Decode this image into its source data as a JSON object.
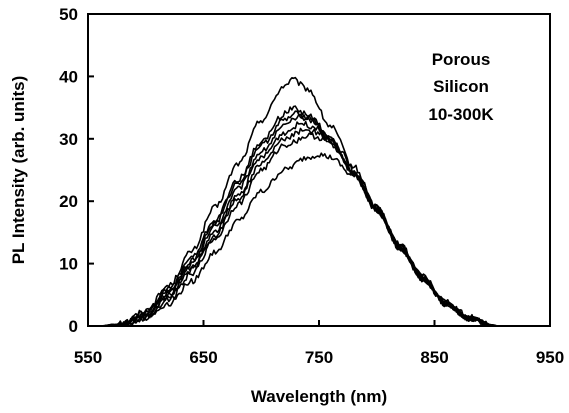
{
  "chart_data": {
    "type": "line",
    "title": "",
    "xlabel": "Wavelength (nm)",
    "ylabel": "PL Intensity (arb. units)",
    "xlim": [
      550,
      950
    ],
    "ylim": [
      0,
      50
    ],
    "x_ticks": [
      550,
      650,
      750,
      850,
      950
    ],
    "y_ticks": [
      0,
      10,
      20,
      30,
      40,
      50
    ],
    "grid": false,
    "legend": "none",
    "annotation": [
      "Porous",
      "Silicon",
      "10-300K"
    ],
    "colors": {
      "line": "#000000",
      "axis": "#000000",
      "background": "#ffffff"
    },
    "series": [
      {
        "peak_x": 727,
        "x": [
          560,
          580,
          600,
          620,
          640,
          660,
          680,
          700,
          720,
          727,
          740,
          760,
          780,
          800,
          820,
          840,
          860,
          880,
          900,
          905
        ],
        "values": [
          0,
          0.5,
          2.5,
          6.5,
          12,
          19,
          26,
          33,
          38.5,
          39.5,
          38,
          32,
          25.5,
          19,
          13,
          8,
          4,
          1.5,
          0.2,
          0
        ]
      },
      {
        "peak_x": 727,
        "x": [
          560,
          580,
          600,
          620,
          640,
          660,
          680,
          700,
          720,
          727,
          740,
          760,
          780,
          800,
          820,
          840,
          860,
          880,
          900,
          905
        ],
        "values": [
          0,
          0.4,
          2.2,
          6,
          11,
          17,
          23.5,
          29.5,
          34,
          35,
          34,
          30,
          24.5,
          18.5,
          12.5,
          7.5,
          3.5,
          1.2,
          0.1,
          0
        ]
      },
      {
        "peak_x": 730,
        "x": [
          560,
          580,
          600,
          620,
          640,
          660,
          680,
          700,
          720,
          730,
          740,
          760,
          780,
          800,
          820,
          840,
          860,
          880,
          900,
          905
        ],
        "values": [
          0,
          0.4,
          2.1,
          5.8,
          10.5,
          16.5,
          23,
          29,
          33,
          34,
          33.5,
          30,
          24.5,
          18.5,
          12.5,
          7.5,
          3.5,
          1.2,
          0.1,
          0
        ]
      },
      {
        "peak_x": 732,
        "x": [
          560,
          580,
          600,
          620,
          640,
          660,
          680,
          700,
          720,
          732,
          745,
          760,
          780,
          800,
          820,
          840,
          860,
          880,
          900,
          905
        ],
        "values": [
          0,
          0.3,
          1.9,
          5.4,
          10,
          16,
          22,
          28,
          32,
          33.5,
          33,
          30,
          24.5,
          18.5,
          12.5,
          7.5,
          3.5,
          1.2,
          0.1,
          0
        ]
      },
      {
        "peak_x": 735,
        "x": [
          560,
          580,
          600,
          620,
          640,
          660,
          680,
          700,
          720,
          735,
          745,
          760,
          780,
          800,
          820,
          840,
          860,
          880,
          900,
          905
        ],
        "values": [
          0,
          0.3,
          1.7,
          5,
          9.5,
          15,
          21,
          27,
          31,
          32.5,
          32,
          29.5,
          24.5,
          18.5,
          12.5,
          7.5,
          3.5,
          1.2,
          0.1,
          0
        ]
      },
      {
        "peak_x": 738,
        "x": [
          560,
          580,
          600,
          620,
          640,
          660,
          680,
          700,
          720,
          738,
          750,
          760,
          780,
          800,
          820,
          840,
          860,
          880,
          900,
          905
        ],
        "values": [
          0,
          0.3,
          1.6,
          4.7,
          9,
          14.5,
          20.5,
          26,
          30,
          31.5,
          31,
          29.5,
          24.5,
          18.5,
          12.5,
          7.5,
          3.5,
          1.2,
          0.1,
          0
        ]
      },
      {
        "peak_x": 742,
        "x": [
          560,
          580,
          600,
          620,
          640,
          660,
          680,
          700,
          720,
          742,
          755,
          770,
          785,
          800,
          820,
          840,
          860,
          880,
          900,
          905
        ],
        "values": [
          0,
          0.2,
          1.4,
          4.3,
          8.5,
          14,
          19.5,
          25,
          29,
          30.5,
          30,
          27.5,
          23.5,
          19,
          13,
          7.8,
          3.6,
          1.2,
          0.1,
          0
        ]
      },
      {
        "peak_x": 750,
        "x": [
          560,
          580,
          600,
          620,
          640,
          660,
          680,
          700,
          720,
          740,
          750,
          760,
          780,
          800,
          820,
          840,
          860,
          880,
          900,
          905
        ],
        "values": [
          0,
          0.2,
          1.2,
          3.6,
          7.2,
          11.8,
          16.8,
          21.5,
          25,
          27,
          27.5,
          27,
          24,
          19,
          13,
          7.8,
          3.6,
          1.2,
          0.1,
          0
        ]
      }
    ]
  }
}
